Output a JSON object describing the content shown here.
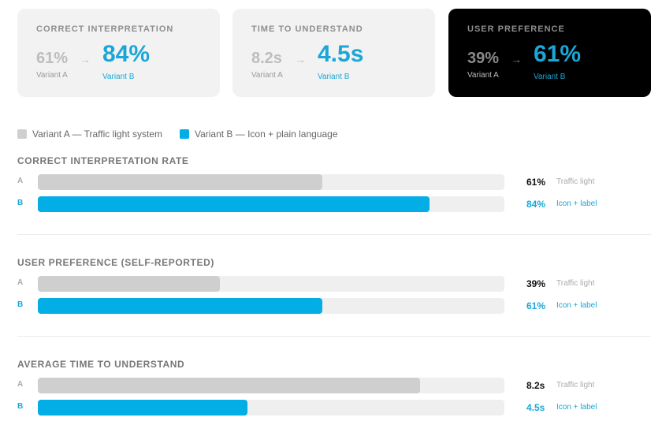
{
  "colors": {
    "variant_a": "#cfcfcf",
    "variant_b": "#03ade6",
    "track": "#efefef",
    "card_bg": "#f2f2f2",
    "card_dark_bg": "#000000"
  },
  "cards": [
    {
      "title": "CORRECT INTERPRETATION",
      "a_value": "61%",
      "a_label": "Variant A",
      "arrow": "→",
      "b_value": "84%",
      "b_label": "Variant B",
      "dark": false
    },
    {
      "title": "TIME TO UNDERSTAND",
      "a_value": "8.2s",
      "a_label": "Variant A",
      "arrow": "→",
      "b_value": "4.5s",
      "b_label": "Variant B",
      "dark": false
    },
    {
      "title": "USER PREFERENCE",
      "a_value": "39%",
      "a_label": "Variant A",
      "arrow": "→",
      "b_value": "61%",
      "b_label": "Variant B",
      "dark": true
    }
  ],
  "legend": [
    {
      "label": "Variant A — Traffic light system",
      "color": "#cfcfcf"
    },
    {
      "label": "Variant B — Icon + plain language",
      "color": "#03ade6"
    }
  ],
  "chart_data": [
    {
      "type": "bar",
      "orientation": "horizontal",
      "title": "CORRECT INTERPRETATION RATE",
      "xlim": [
        0,
        100
      ],
      "bars": [
        {
          "letter": "A",
          "value": 61,
          "value_label": "61%",
          "desc": "Traffic light"
        },
        {
          "letter": "B",
          "value": 84,
          "value_label": "84%",
          "desc": "Icon + label"
        }
      ]
    },
    {
      "type": "bar",
      "orientation": "horizontal",
      "title": "USER PREFERENCE (SELF-REPORTED)",
      "xlim": [
        0,
        100
      ],
      "bars": [
        {
          "letter": "A",
          "value": 39,
          "value_label": "39%",
          "desc": "Traffic light"
        },
        {
          "letter": "B",
          "value": 61,
          "value_label": "61%",
          "desc": "Icon + label"
        }
      ]
    },
    {
      "type": "bar",
      "orientation": "horizontal",
      "title": "AVERAGE TIME TO UNDERSTAND",
      "xlim": [
        0,
        10
      ],
      "bars": [
        {
          "letter": "A",
          "value": 8.2,
          "value_label": "8.2s",
          "desc": "Traffic light"
        },
        {
          "letter": "B",
          "value": 4.5,
          "value_label": "4.5s",
          "desc": "Icon + label"
        }
      ]
    }
  ]
}
